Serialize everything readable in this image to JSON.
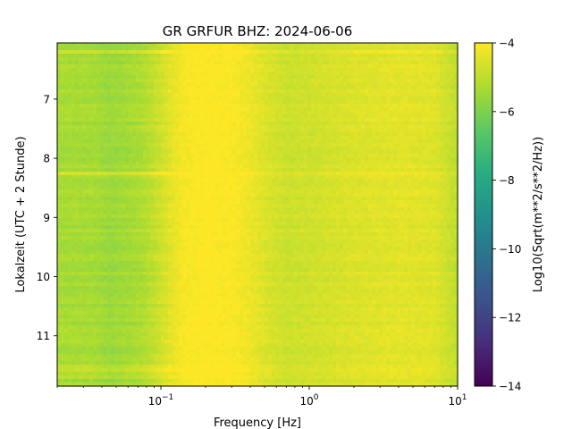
{
  "chart_data": {
    "type": "heatmap",
    "title": "GR GRFUR  BHZ: 2024-06-06",
    "xlabel": "Frequency [Hz]",
    "ylabel": "Lokalzeit (UTC + 2 Stunde)",
    "x_scale": "log",
    "xlim": [
      0.02,
      10
    ],
    "x_ticks": [
      {
        "value": 0.1,
        "base": "10",
        "exp": "−1"
      },
      {
        "value": 1,
        "base": "10",
        "exp": "0"
      },
      {
        "value": 10,
        "base": "10",
        "exp": "1"
      }
    ],
    "ylim": [
      6.05,
      11.85
    ],
    "y_inverted": true,
    "y_ticks": [
      "7",
      "8",
      "9",
      "10",
      "11"
    ],
    "colorbar": {
      "label": "Log10(Sqrt(m**2/s**2/Hz))",
      "range": [
        -14,
        -4
      ],
      "ticks": [
        "−4",
        "−6",
        "−8",
        "−10",
        "−12",
        "−14"
      ],
      "colormap": "viridis"
    },
    "profile": {
      "frequency_hz": [
        0.02,
        0.035,
        0.045,
        0.06,
        0.075,
        0.09,
        0.11,
        0.14,
        0.2,
        0.3,
        0.38,
        0.5,
        0.7,
        1.0,
        2.0,
        4.0,
        7.0,
        9.5
      ],
      "level": [
        -5.3,
        -5.3,
        -5.5,
        -5.35,
        -5.2,
        -4.9,
        -4.5,
        -4.1,
        -4.0,
        -4.05,
        -4.2,
        -4.5,
        -4.75,
        -4.7,
        -4.5,
        -4.4,
        -4.45,
        -4.9
      ]
    },
    "notable_rows": [
      {
        "time": 6.2,
        "delta": 0.4
      },
      {
        "time": 8.25,
        "delta": 0.85
      },
      {
        "time": 11.55,
        "delta": 0.5
      },
      {
        "time": 11.7,
        "delta": 0.45
      }
    ]
  }
}
